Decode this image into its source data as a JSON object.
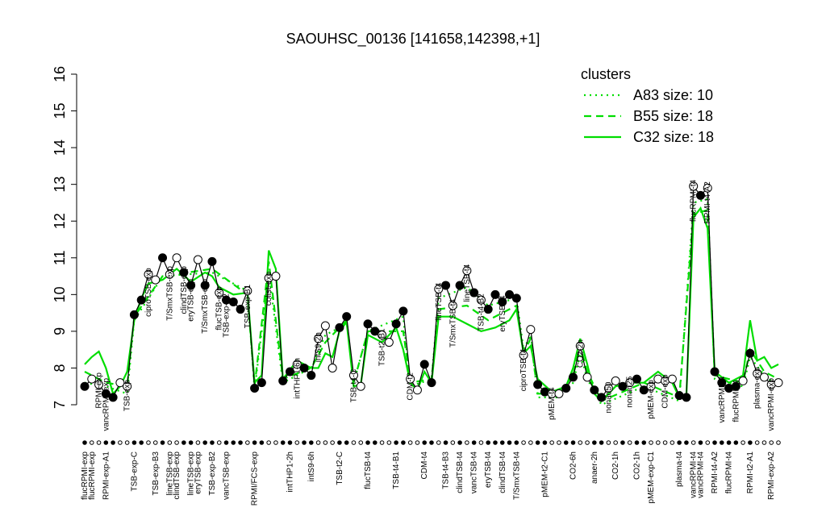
{
  "chart_data": {
    "type": "line",
    "title": "SAOUHSC_00136 [141658,142398,+1]",
    "xlim": [
      1,
      99
    ],
    "ylim": [
      7,
      16
    ],
    "yticks": [
      7,
      8,
      9,
      10,
      11,
      12,
      13,
      14,
      15,
      16
    ],
    "xticks": [
      {
        "value": 1,
        "label": "flucRPMI-exp"
      },
      {
        "value": 2,
        "label": "flucRPMI-exp"
      },
      {
        "value": 4,
        "label": "RPMI-exp-A1"
      },
      {
        "value": 8,
        "label": "TSB-exp-C"
      },
      {
        "value": 11,
        "label": "TSB-exp-B3"
      },
      {
        "value": 13,
        "label": "lineTSB-exp"
      },
      {
        "value": 14,
        "label": "clindTSB-exp"
      },
      {
        "value": 16,
        "label": "lineTSB-exp"
      },
      {
        "value": 17,
        "label": "eryTSB-exp"
      },
      {
        "value": 19,
        "label": "TSB-exp-B2"
      },
      {
        "value": 21,
        "label": "vancTSB-exp"
      },
      {
        "value": 25,
        "label": "RPMI/FCS-exp"
      },
      {
        "value": 30,
        "label": "intTHP1-2h"
      },
      {
        "value": 33,
        "label": "intS9-6h"
      },
      {
        "value": 37,
        "label": "TSB-t2-C"
      },
      {
        "value": 41,
        "label": "flucTSB-t4"
      },
      {
        "value": 45,
        "label": "TSB-t4-B1"
      },
      {
        "value": 49,
        "label": "CDM-t4"
      },
      {
        "value": 52,
        "label": "TSB-t4-B3"
      },
      {
        "value": 54,
        "label": "clindTSB-t4"
      },
      {
        "value": 56,
        "label": "vancTSB-t4"
      },
      {
        "value": 58,
        "label": "eryTSB-t4"
      },
      {
        "value": 60,
        "label": "clindTSB-t4"
      },
      {
        "value": 62,
        "label": "T/SmxTSB-t4"
      },
      {
        "value": 66,
        "label": "pMEM-t2-C1"
      },
      {
        "value": 70,
        "label": "CO2-6h"
      },
      {
        "value": 73,
        "label": "anaer-2h"
      },
      {
        "value": 76,
        "label": "CO2-1h"
      },
      {
        "value": 79,
        "label": "CO2-1h"
      },
      {
        "value": 81,
        "label": "pMEM-exp-C1"
      },
      {
        "value": 85,
        "label": "plasma-t4"
      },
      {
        "value": 87,
        "label": "vancRPMI-t4"
      },
      {
        "value": 88,
        "label": "vancRPMI-t4"
      },
      {
        "value": 90,
        "label": "RPMI-t4-A2"
      },
      {
        "value": 92,
        "label": "flucRPMI-t4"
      },
      {
        "value": 95,
        "label": "RPMI-t2-A1"
      },
      {
        "value": 98,
        "label": "RPMI-exp-A2"
      }
    ],
    "samples": {
      "color": "#000000",
      "values": [
        7.5,
        7.7,
        7.55,
        7.3,
        7.2,
        7.6,
        7.5,
        9.45,
        9.85,
        10.55,
        10.4,
        11.0,
        10.55,
        11.0,
        10.6,
        10.25,
        10.95,
        10.25,
        10.9,
        10.05,
        9.85,
        9.8,
        9.6,
        10.1,
        7.45,
        7.6,
        10.45,
        10.5,
        7.65,
        7.9,
        8.1,
        8.0,
        7.8,
        8.8,
        9.15,
        8.0,
        9.1,
        9.4,
        7.8,
        7.5,
        9.2,
        9.0,
        8.9,
        8.7,
        9.2,
        9.55,
        7.7,
        7.4,
        8.1,
        7.6,
        10.15,
        10.25,
        9.7,
        10.25,
        10.65,
        10.05,
        9.85,
        9.6,
        10.0,
        9.8,
        10.0,
        9.9,
        8.35,
        9.05,
        7.55,
        7.35,
        7.3,
        7.3,
        7.45,
        7.75,
        8.6,
        7.75,
        7.4,
        7.2,
        7.45,
        7.65,
        7.5,
        7.6,
        7.7,
        7.4,
        7.5,
        7.7,
        7.65,
        7.7,
        7.25,
        7.2,
        12.95,
        12.7,
        12.9,
        7.9,
        7.6,
        7.45,
        7.5,
        7.65,
        8.4,
        7.85,
        7.75,
        7.55,
        7.6
      ],
      "filled": [
        true,
        false,
        false,
        true,
        true,
        false,
        false,
        true,
        true,
        false,
        false,
        true,
        false,
        false,
        true,
        true,
        false,
        true,
        true,
        false,
        true,
        true,
        true,
        false,
        true,
        true,
        false,
        false,
        true,
        true,
        false,
        true,
        true,
        false,
        false,
        false,
        true,
        true,
        false,
        false,
        true,
        true,
        false,
        false,
        true,
        true,
        false,
        false,
        true,
        true,
        false,
        true,
        false,
        true,
        false,
        true,
        false,
        true,
        true,
        true,
        true,
        true,
        false,
        false,
        true,
        true,
        false,
        false,
        true,
        true,
        false,
        false,
        true,
        true,
        false,
        false,
        true,
        false,
        true,
        true,
        false,
        false,
        false,
        false,
        true,
        true,
        false,
        true,
        false,
        true,
        true,
        true,
        true,
        false,
        true,
        false,
        false,
        false,
        false
      ]
    },
    "annotations": [
      {
        "x": 3,
        "y": 7.7,
        "text": "RPMI-exp"
      },
      {
        "x": 4,
        "y": 7.55,
        "text": "vancRPMI-exp"
      },
      {
        "x": 7,
        "y": 7.5,
        "text": "TSB-exp"
      },
      {
        "x": 10,
        "y": 10.55,
        "text": "ciproTSB-exp"
      },
      {
        "x": 13,
        "y": 10.6,
        "text": "T/SmxTSB-exp"
      },
      {
        "x": 15,
        "y": 10.6,
        "text": "clindTSB-exp"
      },
      {
        "x": 16,
        "y": 10.25,
        "text": "eryTSB-exp"
      },
      {
        "x": 18,
        "y": 10.25,
        "text": "T/SmxTSB-exp"
      },
      {
        "x": 20,
        "y": 10.05,
        "text": "flucTSB-exp"
      },
      {
        "x": 21,
        "y": 9.85,
        "text": "TSB-exp-B2"
      },
      {
        "x": 24,
        "y": 10.1,
        "text": "TSB-exp-B1"
      },
      {
        "x": 27,
        "y": 10.45,
        "text": "colist-exp"
      },
      {
        "x": 31,
        "y": 8.1,
        "text": "intTHP1-6h"
      },
      {
        "x": 34,
        "y": 8.8,
        "text": "intS9-2h"
      },
      {
        "x": 39,
        "y": 7.8,
        "text": "TSB-t4-C"
      },
      {
        "x": 43,
        "y": 8.9,
        "text": "TSB-t2-B1"
      },
      {
        "x": 47,
        "y": 7.7,
        "text": "CDM-t2"
      },
      {
        "x": 51,
        "y": 10.15,
        "text": "lineTSB-t4"
      },
      {
        "x": 53,
        "y": 9.7,
        "text": "T/SmxTSB-t4"
      },
      {
        "x": 55,
        "y": 10.65,
        "text": "lineTSB-t4"
      },
      {
        "x": 57,
        "y": 9.85,
        "text": "TSB-t4-B2"
      },
      {
        "x": 60,
        "y": 9.8,
        "text": "eryTSB-t4"
      },
      {
        "x": 63,
        "y": 8.35,
        "text": "ciproTSB-t4"
      },
      {
        "x": 67,
        "y": 7.3,
        "text": "pMEM-t4"
      },
      {
        "x": 71,
        "y": 8.6,
        "text": "CO2-2h"
      },
      {
        "x": 75,
        "y": 7.45,
        "text": "nonad50"
      },
      {
        "x": 78,
        "y": 7.6,
        "text": "nonad25"
      },
      {
        "x": 81,
        "y": 7.5,
        "text": "pMEM-exp"
      },
      {
        "x": 83,
        "y": 7.65,
        "text": "CDM-exp"
      },
      {
        "x": 87,
        "y": 12.95,
        "text": "flucRPMI-t4"
      },
      {
        "x": 89,
        "y": 12.9,
        "text": "RPMI-t4-A2"
      },
      {
        "x": 91,
        "y": 7.6,
        "text": "vancRPMI-t4"
      },
      {
        "x": 93,
        "y": 7.5,
        "text": "flucRPMI-t4"
      },
      {
        "x": 96,
        "y": 7.85,
        "text": "plasma-exp"
      },
      {
        "x": 98,
        "y": 7.55,
        "text": "vancRPMI-exp"
      }
    ],
    "legend": {
      "title": "clusters",
      "color": "#00dd00"
    },
    "series": [
      {
        "name": "A83 size: 10",
        "color": "#00dd00",
        "dash": "dotted",
        "x": [
          1,
          4,
          7,
          8,
          12,
          19,
          24,
          25,
          27,
          29,
          33,
          35,
          37,
          38,
          39,
          41,
          46,
          47,
          50,
          51,
          55,
          58,
          62,
          63,
          64,
          65,
          68,
          70,
          71,
          72,
          74,
          80,
          85,
          87,
          89,
          90,
          94,
          95,
          97,
          99
        ],
        "values": [
          7.6,
          7.5,
          7.3,
          9.3,
          10.5,
          10.6,
          10.1,
          7.4,
          10.6,
          7.6,
          8.0,
          8.9,
          9.1,
          9.3,
          7.6,
          9.0,
          9.4,
          7.5,
          7.7,
          9.9,
          10.2,
          9.7,
          9.9,
          8.5,
          8.9,
          7.2,
          7.2,
          7.6,
          8.4,
          7.7,
          7.0,
          7.5,
          7.1,
          12.5,
          12.6,
          7.7,
          7.5,
          8.3,
          7.8,
          7.5
        ]
      },
      {
        "name": "B55 size: 18",
        "color": "#00dd00",
        "dash": "dashed",
        "x": [
          1,
          4,
          7,
          8,
          12,
          19,
          24,
          25,
          27,
          29,
          33,
          35,
          37,
          38,
          39,
          41,
          46,
          47,
          50,
          51,
          55,
          58,
          62,
          63,
          64,
          65,
          68,
          70,
          71,
          72,
          74,
          80,
          85,
          87,
          89,
          90,
          94,
          95,
          97,
          99
        ],
        "values": [
          7.9,
          7.6,
          7.5,
          9.4,
          10.5,
          10.7,
          10.0,
          7.5,
          10.9,
          7.7,
          8.0,
          8.7,
          9.1,
          9.3,
          7.6,
          9.0,
          9.0,
          7.6,
          7.7,
          9.6,
          9.7,
          9.3,
          9.7,
          8.4,
          8.8,
          7.3,
          7.3,
          7.8,
          8.6,
          7.9,
          7.1,
          7.6,
          7.2,
          12.2,
          12.3,
          7.8,
          7.6,
          8.5,
          7.9,
          7.7
        ]
      },
      {
        "name": "C32 size: 18",
        "color": "#00dd00",
        "dash": "solid",
        "x": [
          1,
          2,
          3,
          4,
          5,
          6,
          7,
          8,
          9,
          10,
          12,
          14,
          16,
          18,
          19,
          20,
          22,
          24,
          25,
          26,
          27,
          28,
          29,
          31,
          33,
          34,
          35,
          36,
          37,
          38,
          39,
          40,
          41,
          43,
          45,
          46,
          47,
          48,
          49,
          50,
          51,
          53,
          55,
          57,
          59,
          61,
          62,
          63,
          64,
          65,
          67,
          69,
          70,
          71,
          72,
          73,
          74,
          76,
          78,
          80,
          82,
          84,
          85,
          86,
          87,
          88,
          89,
          90,
          92,
          94,
          95,
          96,
          97,
          98,
          99
        ],
        "values": [
          8.1,
          8.3,
          8.45,
          8.0,
          7.3,
          7.5,
          7.9,
          9.3,
          9.9,
          10.3,
          10.4,
          10.7,
          10.35,
          10.6,
          10.5,
          10.2,
          10.0,
          10.05,
          7.6,
          7.8,
          11.2,
          10.7,
          7.7,
          8.2,
          8.0,
          8.0,
          8.4,
          8.3,
          9.0,
          9.25,
          7.5,
          7.55,
          8.9,
          8.7,
          9.1,
          8.5,
          7.6,
          7.4,
          7.9,
          7.6,
          9.4,
          9.4,
          9.2,
          9.0,
          9.1,
          9.3,
          9.6,
          8.4,
          8.6,
          7.7,
          7.35,
          7.5,
          8.0,
          8.8,
          8.1,
          7.3,
          7.1,
          7.5,
          7.6,
          7.6,
          7.9,
          7.6,
          7.2,
          7.25,
          12.1,
          12.35,
          11.8,
          7.9,
          7.6,
          7.8,
          9.3,
          8.2,
          8.3,
          8.0,
          8.1
        ]
      }
    ]
  }
}
